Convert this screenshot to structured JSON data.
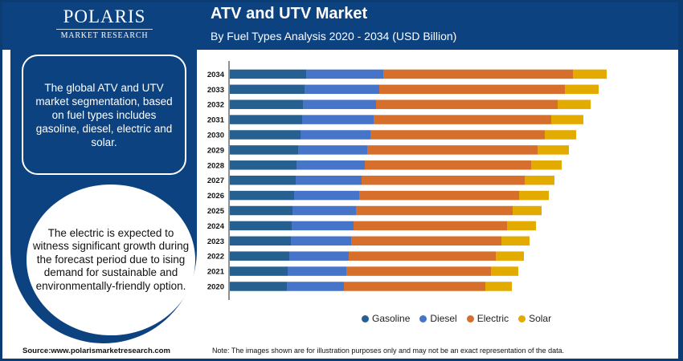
{
  "brand": {
    "name": "POLARIS",
    "tagline": "MARKET RESEARCH"
  },
  "header": {
    "title": "ATV and UTV Market",
    "subtitle": "By Fuel Types Analysis 2020 - 2034 (USD Billion)"
  },
  "sidebar": {
    "summary": "The global ATV and UTV market segmentation, based on fuel types includes gasoline, diesel, electric and solar.",
    "highlight": "The electric is expected to witness significant growth during the forecast period due to ising demand for sustainable and environmentally-friendly option."
  },
  "footer": {
    "source": "Source:www.polarismarketresearch.com",
    "note": "Note: The images shown are for illustration purposes only and may not be an exact representation of the data."
  },
  "chart_data": {
    "type": "bar",
    "orientation": "horizontal",
    "stacked": true,
    "title": "ATV and UTV Market",
    "subtitle": "By Fuel Types Analysis 2020 - 2034 (USD Billion)",
    "categories": [
      "2020",
      "2021",
      "2022",
      "2023",
      "2024",
      "2025",
      "2026",
      "2027",
      "2028",
      "2029",
      "2030",
      "2031",
      "2032",
      "2033",
      "2034"
    ],
    "series": [
      {
        "name": "Gasoline",
        "color": "#266090",
        "values": [
          7.1,
          7.2,
          7.4,
          7.6,
          7.7,
          7.8,
          8.0,
          8.2,
          8.3,
          8.5,
          8.8,
          9.0,
          9.1,
          9.3,
          9.5
        ]
      },
      {
        "name": "Diesel",
        "color": "#4574c8",
        "values": [
          7.1,
          7.3,
          7.4,
          7.5,
          7.7,
          7.9,
          8.1,
          8.2,
          8.5,
          8.6,
          8.7,
          8.9,
          9.1,
          9.3,
          9.6
        ]
      },
      {
        "name": "Electric",
        "color": "#d56f2b",
        "values": [
          17.6,
          18.0,
          18.3,
          18.7,
          19.1,
          19.5,
          19.9,
          20.3,
          20.7,
          21.2,
          21.7,
          22.1,
          22.6,
          23.1,
          23.6
        ]
      },
      {
        "name": "Solar",
        "color": "#e3aa00",
        "values": [
          3.3,
          3.4,
          3.5,
          3.5,
          3.6,
          3.6,
          3.7,
          3.7,
          3.8,
          3.9,
          3.9,
          4.0,
          4.1,
          4.2,
          4.2
        ]
      }
    ],
    "xaxis_visible": false,
    "grid": false,
    "legend": "bottom"
  }
}
